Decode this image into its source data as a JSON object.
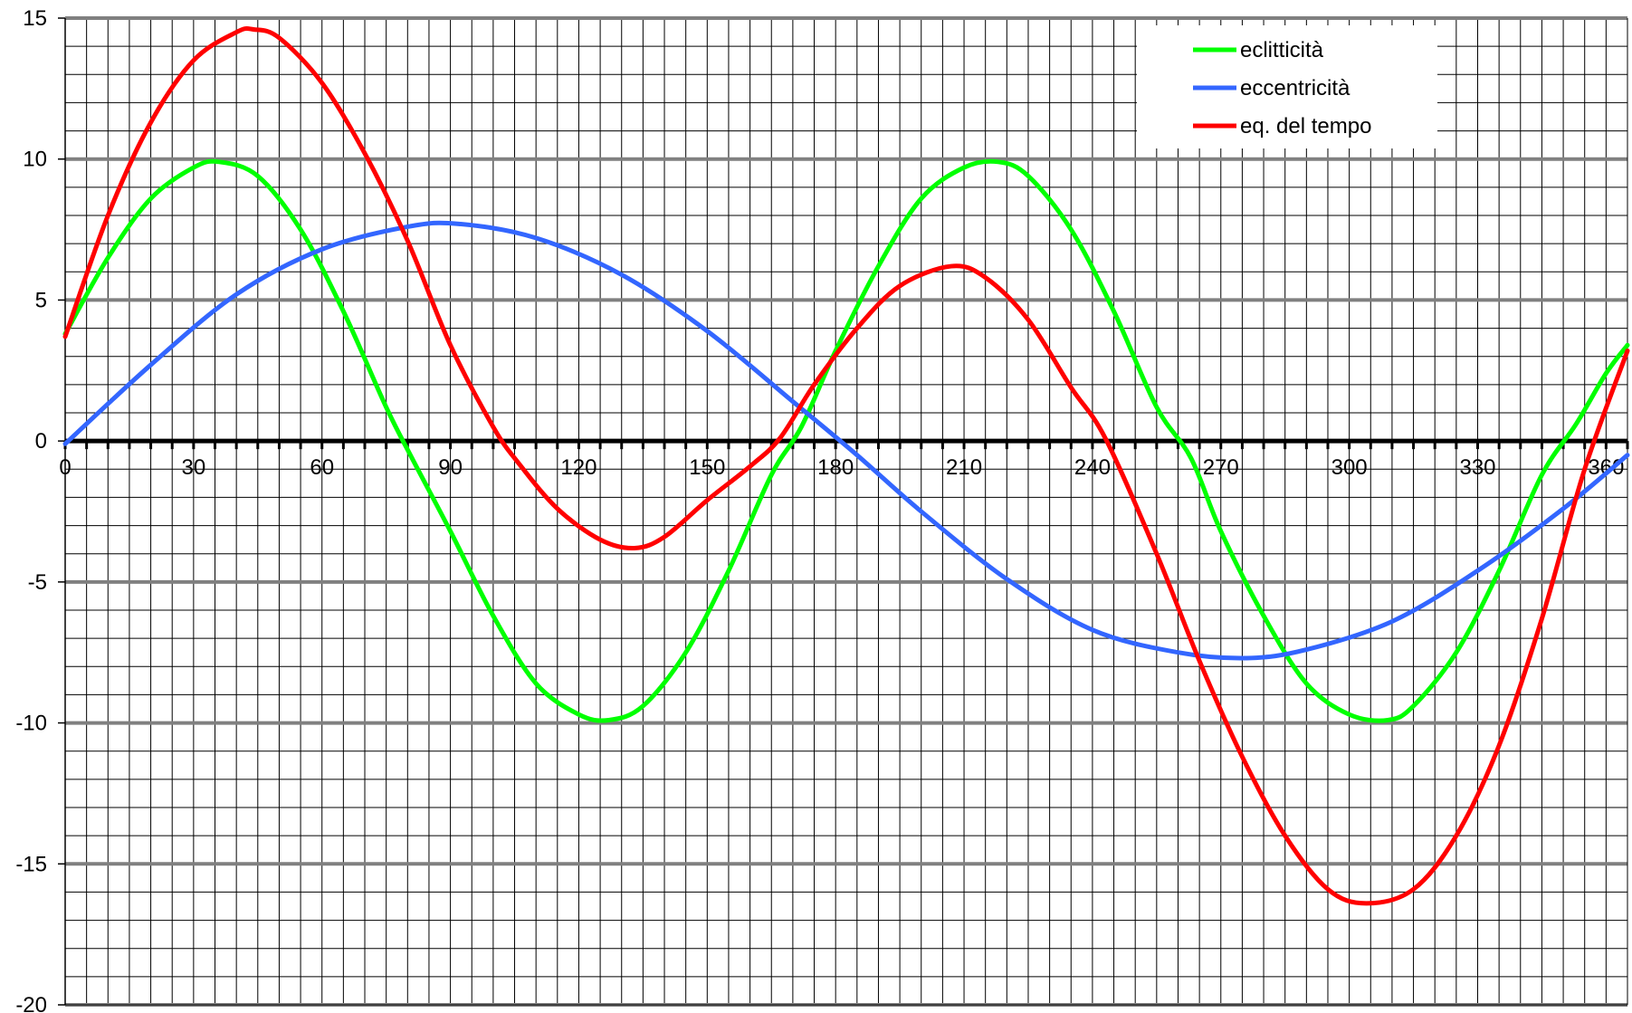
{
  "chart_data": {
    "type": "line",
    "title": "",
    "xlabel": "",
    "ylabel": "",
    "xlim": [
      0,
      365
    ],
    "ylim": [
      -20,
      15
    ],
    "x_ticks": [
      0,
      30,
      60,
      90,
      120,
      150,
      180,
      210,
      240,
      270,
      300,
      330,
      360
    ],
    "y_ticks": [
      -20,
      -15,
      -10,
      -5,
      0,
      5,
      10,
      15
    ],
    "grid": true,
    "legend_position": "top-right",
    "series": [
      {
        "name": "eclitticità",
        "color": "#00ff00",
        "x": [
          0,
          10,
          20,
          30,
          36,
          45,
          55,
          65,
          75,
          81,
          90,
          100,
          110,
          120,
          127,
          135,
          145,
          155,
          165,
          172,
          180,
          190,
          200,
          210,
          218,
          225,
          235,
          245,
          255,
          263,
          270,
          280,
          290,
          300,
          309,
          315,
          325,
          335,
          345,
          353,
          360,
          365
        ],
        "y": [
          3.8,
          6.5,
          8.6,
          9.7,
          9.9,
          9.4,
          7.5,
          4.6,
          1.2,
          -0.6,
          -3.2,
          -6.2,
          -8.6,
          -9.7,
          -9.9,
          -9.4,
          -7.5,
          -4.6,
          -1.2,
          0.5,
          3.2,
          6.2,
          8.6,
          9.7,
          9.9,
          9.4,
          7.5,
          4.6,
          1.2,
          -0.6,
          -3.2,
          -6.2,
          -8.6,
          -9.7,
          -9.9,
          -9.4,
          -7.5,
          -4.6,
          -1.2,
          0.6,
          2.4,
          3.4
        ]
      },
      {
        "name": "eccentricità",
        "color": "#3366ff",
        "x": [
          0,
          20,
          40,
          60,
          80,
          92,
          110,
          130,
          150,
          170,
          185,
          200,
          220,
          240,
          260,
          276,
          290,
          310,
          330,
          350,
          365
        ],
        "y": [
          -0.1,
          2.7,
          5.2,
          6.8,
          7.6,
          7.7,
          7.2,
          5.9,
          3.9,
          1.4,
          -0.5,
          -2.5,
          -4.9,
          -6.7,
          -7.5,
          -7.7,
          -7.4,
          -6.4,
          -4.6,
          -2.4,
          -0.5
        ]
      },
      {
        "name": "eq. del tempo",
        "color": "#ff0000",
        "x": [
          0,
          10,
          20,
          30,
          40,
          44,
          50,
          60,
          70,
          80,
          90,
          100,
          106,
          115,
          125,
          133,
          140,
          150,
          160,
          167,
          175,
          185,
          195,
          207,
          215,
          225,
          235,
          243,
          255,
          265,
          275,
          285,
          295,
          304,
          315,
          325,
          335,
          345,
          355,
          365
        ],
        "y": [
          3.7,
          8.0,
          11.3,
          13.5,
          14.5,
          14.6,
          14.3,
          12.7,
          10.2,
          7.1,
          3.4,
          0.5,
          -0.8,
          -2.4,
          -3.5,
          -3.8,
          -3.4,
          -2.1,
          -0.9,
          0.1,
          2.0,
          4.0,
          5.5,
          6.2,
          5.8,
          4.3,
          1.9,
          0.1,
          -4.0,
          -7.8,
          -11.2,
          -14.0,
          -15.9,
          -16.4,
          -15.9,
          -14.0,
          -10.8,
          -6.3,
          -1.0,
          3.2
        ]
      }
    ]
  }
}
